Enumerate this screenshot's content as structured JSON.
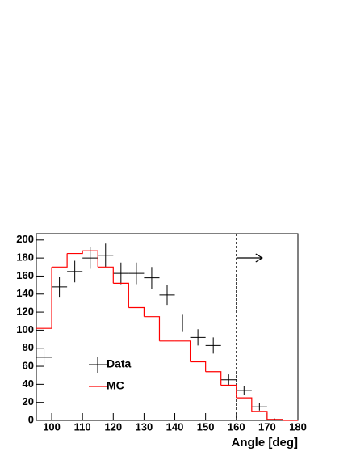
{
  "chart_data": {
    "type": "histogram",
    "x_label": "Angle [deg]",
    "xlim": [
      95,
      180
    ],
    "ylim": [
      0,
      207
    ],
    "xticks": [
      100,
      110,
      120,
      130,
      140,
      150,
      160,
      170,
      180
    ],
    "yticks": [
      0,
      20,
      40,
      60,
      80,
      100,
      120,
      140,
      160,
      180,
      200
    ],
    "cut_x": 160,
    "legend": "lower left",
    "bins": [
      95,
      100,
      105,
      110,
      115,
      120,
      125,
      130,
      135,
      140,
      145,
      150,
      155,
      160,
      165,
      170,
      175,
      180
    ],
    "series": [
      {
        "name": "Data",
        "color": "#000000",
        "style": "points",
        "x": [
          97.5,
          102.5,
          107.5,
          112.5,
          117.5,
          122.5,
          127.5,
          132.5,
          137.5,
          142.5,
          147.5,
          152.5,
          157.5,
          162.5,
          167.5,
          172.5
        ],
        "values": [
          70,
          148,
          165,
          180,
          183,
          163,
          163,
          158,
          139,
          108,
          92,
          83,
          45,
          33,
          15,
          1
        ],
        "errors": [
          9,
          11,
          12,
          12,
          13,
          12,
          12,
          12,
          11,
          10,
          9,
          9,
          6,
          5,
          4,
          1
        ]
      },
      {
        "name": "MC",
        "color": "#ff0000",
        "style": "step",
        "values": [
          102,
          170,
          185,
          188,
          170,
          152,
          125,
          115,
          88,
          88,
          65,
          54,
          39,
          25,
          10,
          1,
          0
        ]
      }
    ]
  }
}
